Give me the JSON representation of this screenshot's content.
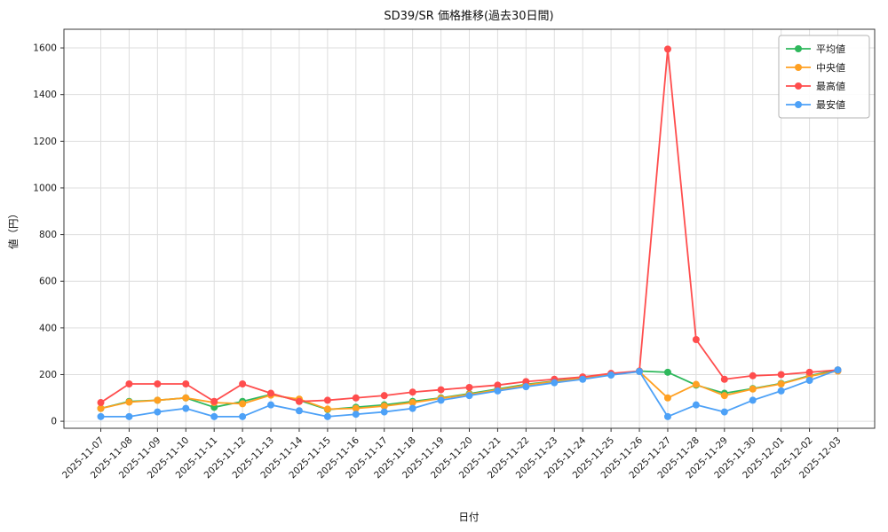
{
  "chart_data": {
    "type": "line",
    "title": "SD39/SR 価格推移(過去30日間)",
    "xlabel": "日付",
    "ylabel": "値（円）",
    "grid": true,
    "legend_position": "upper right",
    "marker": "circle",
    "ylim": [
      -30,
      1680
    ],
    "yticks": [
      0,
      200,
      400,
      600,
      800,
      1000,
      1200,
      1400,
      1600
    ],
    "x": [
      "2025-11-07",
      "2025-11-08",
      "2025-11-09",
      "2025-11-10",
      "2025-11-11",
      "2025-11-12",
      "2025-11-13",
      "2025-11-14",
      "2025-11-15",
      "2025-11-16",
      "2025-11-17",
      "2025-11-18",
      "2025-11-19",
      "2025-11-20",
      "2025-11-21",
      "2025-11-22",
      "2025-11-23",
      "2025-11-24",
      "2025-11-25",
      "2025-11-26",
      "2025-11-27",
      "2025-11-28",
      "2025-11-29",
      "2025-11-30",
      "2025-12-01",
      "2025-12-02",
      "2025-12-03"
    ],
    "series": [
      {
        "name": "平均値",
        "color": "#2eb85c",
        "values": [
          55,
          85,
          90,
          100,
          60,
          85,
          115,
          90,
          50,
          60,
          70,
          85,
          100,
          118,
          138,
          158,
          172,
          188,
          202,
          215,
          210,
          155,
          120,
          140,
          162,
          195,
          220
        ]
      },
      {
        "name": "中央値",
        "color": "#ffa022",
        "values": [
          55,
          82,
          90,
          100,
          80,
          75,
          112,
          95,
          52,
          55,
          65,
          80,
          98,
          115,
          135,
          155,
          170,
          185,
          200,
          213,
          100,
          158,
          110,
          138,
          160,
          193,
          215
        ]
      },
      {
        "name": "最高値",
        "color": "#ff4d4d",
        "values": [
          80,
          160,
          160,
          160,
          85,
          160,
          120,
          85,
          90,
          100,
          110,
          125,
          135,
          145,
          155,
          170,
          180,
          190,
          205,
          215,
          1595,
          350,
          180,
          195,
          200,
          210,
          220
        ]
      },
      {
        "name": "最安値",
        "color": "#4da1f7",
        "values": [
          20,
          20,
          40,
          55,
          20,
          20,
          70,
          45,
          20,
          30,
          40,
          55,
          90,
          110,
          130,
          148,
          165,
          180,
          198,
          213,
          20,
          70,
          40,
          90,
          130,
          175,
          220
        ]
      }
    ]
  }
}
